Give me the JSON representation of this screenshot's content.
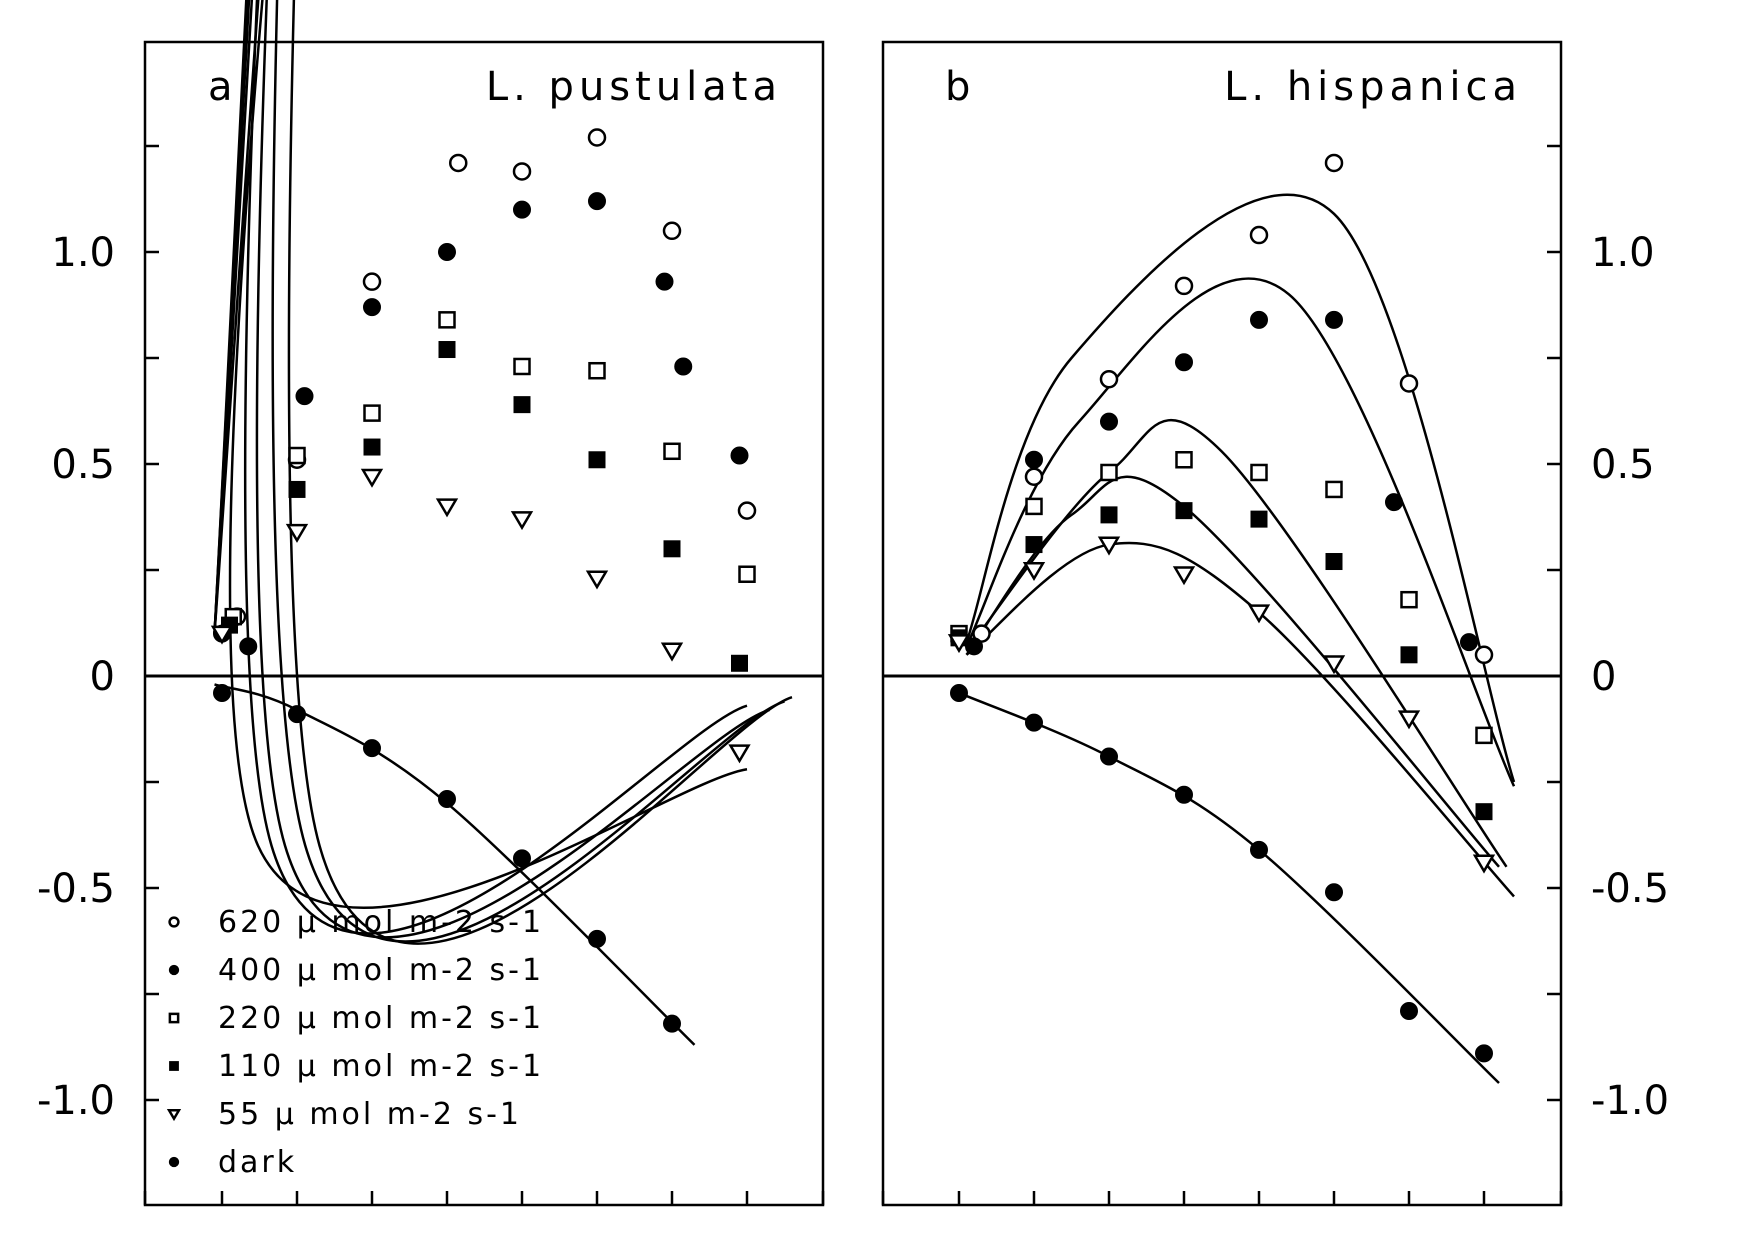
{
  "chart_data": [
    {
      "type": "scatter",
      "panel_label": "a",
      "title": "L. pustulata",
      "ylim": [
        -1.2,
        1.45
      ],
      "xlim": [
        -1.0,
        8.0
      ],
      "yticks": [
        -1.0,
        -0.75,
        -0.5,
        -0.25,
        0,
        0.25,
        0.5,
        0.75,
        1.0,
        1.25
      ],
      "ytick_labels": [
        "-1.0",
        "",
        "-0.5",
        "",
        "0",
        "",
        "0.5",
        "",
        "1.0",
        ""
      ],
      "axis_side": "left",
      "xticks": [
        0,
        1,
        2,
        3,
        4,
        5,
        6,
        7
      ],
      "grid": false,
      "legend_position": "bottom-left",
      "series": [
        {
          "name": "620 μ mol m-2 s-1",
          "marker": "open-circle",
          "x": [
            0.2,
            1.0,
            2.0,
            3.15,
            4.0,
            5.0,
            6.0,
            7.0
          ],
          "y": [
            0.14,
            0.51,
            0.93,
            1.21,
            1.19,
            1.27,
            1.05,
            0.39
          ],
          "curve": [
            -0.1,
            0.1,
            1.34,
            3.9,
            1.3,
            -0.4,
            7.6,
            -0.05
          ]
        },
        {
          "name": "400 μ mol m-2 s-1",
          "marker": "filled-circle",
          "x": [
            0.0,
            0.35,
            1.1,
            2.0,
            3.0,
            4.0,
            5.0,
            5.9,
            6.15,
            6.9
          ],
          "y": [
            0.1,
            0.07,
            0.66,
            0.87,
            1.0,
            1.1,
            1.12,
            0.93,
            0.73,
            0.52
          ],
          "curve": [
            -0.1,
            0.1,
            1.1,
            3.8,
            1.11,
            -0.4,
            7.5,
            -0.06
          ]
        },
        {
          "name": "220 μ mol m-2 s-1",
          "marker": "open-square",
          "x": [
            0.15,
            1.0,
            2.0,
            3.0,
            4.0,
            5.0,
            6.0,
            7.0
          ],
          "y": [
            0.14,
            0.52,
            0.62,
            0.84,
            0.73,
            0.72,
            0.53,
            0.24
          ],
          "curve": [
            -0.1,
            0.1,
            1.1,
            3.6,
            0.84,
            -0.4,
            7.3,
            -0.08
          ]
        },
        {
          "name": "110 μ mol m-2 s-1",
          "marker": "filled-square",
          "x": [
            0.1,
            1.0,
            2.0,
            3.0,
            4.0,
            5.0,
            6.0,
            6.9
          ],
          "y": [
            0.12,
            0.44,
            0.54,
            0.77,
            0.64,
            0.51,
            0.3,
            0.03
          ],
          "curve": [
            -0.1,
            0.1,
            1.0,
            3.5,
            0.66,
            -0.4,
            7.0,
            -0.07
          ]
        },
        {
          "name": "55 μ mol m-2 s-1",
          "marker": "open-triangle",
          "x": [
            0.0,
            1.0,
            2.0,
            3.0,
            4.0,
            5.0,
            6.0,
            6.9
          ],
          "y": [
            0.1,
            0.34,
            0.47,
            0.4,
            0.37,
            0.23,
            0.06,
            -0.18
          ],
          "curve": [
            -0.1,
            0.1,
            0.8,
            2.2,
            0.48,
            -0.4,
            7.0,
            -0.22
          ]
        },
        {
          "name": "dark",
          "marker": "filled-circle",
          "x": [
            0.0,
            1.0,
            2.0,
            3.0,
            4.0,
            5.0,
            6.0
          ],
          "y": [
            -0.04,
            -0.09,
            -0.17,
            -0.29,
            -0.43,
            -0.62,
            -0.82
          ],
          "curve": [
            -0.1,
            -0.02,
            1.0,
            -0.08,
            3.0,
            -0.3,
            6.3,
            -0.87
          ]
        }
      ]
    },
    {
      "type": "scatter",
      "panel_label": "b",
      "title": "L. hispanica",
      "ylim": [
        -1.2,
        1.45
      ],
      "xlim": [
        -1.0,
        8.0
      ],
      "yticks": [
        -1.0,
        -0.75,
        -0.5,
        -0.25,
        0,
        0.25,
        0.5,
        0.75,
        1.0,
        1.25
      ],
      "ytick_labels": [
        "-1.0",
        "",
        "-0.5",
        "",
        "0",
        "",
        "0.5",
        "",
        "1.0",
        ""
      ],
      "axis_side": "right",
      "xticks": [
        0,
        1,
        2,
        3,
        4,
        5,
        6,
        7
      ],
      "grid": false,
      "series": [
        {
          "name": "620 μ mol m-2 s-1",
          "marker": "open-circle",
          "x": [
            0.3,
            1.0,
            2.0,
            3.0,
            4.0,
            5.0,
            6.0,
            7.0
          ],
          "y": [
            0.1,
            0.47,
            0.7,
            0.92,
            1.04,
            1.21,
            0.69,
            0.05
          ],
          "curve": [
            0.1,
            0.08,
            1.5,
            0.75,
            5.0,
            1.09,
            7.4,
            -0.25
          ]
        },
        {
          "name": "400 μ mol m-2 s-1",
          "marker": "filled-circle",
          "x": [
            0.2,
            1.0,
            2.0,
            3.0,
            4.0,
            5.0,
            5.8,
            6.8
          ],
          "y": [
            0.07,
            0.51,
            0.6,
            0.74,
            0.84,
            0.84,
            0.41,
            0.08
          ],
          "curve": [
            0.1,
            0.07,
            1.6,
            0.6,
            4.4,
            0.9,
            7.4,
            -0.26
          ]
        },
        {
          "name": "220 μ mol m-2 s-1",
          "marker": "open-square",
          "x": [
            0.0,
            1.0,
            2.0,
            3.0,
            4.0,
            5.0,
            6.0,
            7.0
          ],
          "y": [
            0.1,
            0.4,
            0.48,
            0.51,
            0.48,
            0.44,
            0.18,
            -0.14
          ],
          "curve": [
            0.1,
            0.06,
            2.0,
            0.48,
            3.5,
            0.53,
            7.3,
            -0.45
          ]
        },
        {
          "name": "110 μ mol m-2 s-1",
          "marker": "filled-square",
          "x": [
            0.0,
            1.0,
            2.0,
            3.0,
            4.0,
            5.0,
            6.0,
            7.0
          ],
          "y": [
            0.09,
            0.31,
            0.38,
            0.39,
            0.37,
            0.27,
            0.05,
            -0.32
          ],
          "curve": [
            0.1,
            0.05,
            1.5,
            0.38,
            3.0,
            0.4,
            7.2,
            -0.45
          ]
        },
        {
          "name": "55 μ mol m-2 s-1",
          "marker": "open-triangle",
          "x": [
            0.0,
            1.0,
            2.0,
            3.0,
            4.0,
            5.0,
            6.0,
            7.0
          ],
          "y": [
            0.08,
            0.25,
            0.31,
            0.24,
            0.15,
            0.03,
            -0.1,
            -0.44
          ],
          "curve": [
            0.1,
            0.05,
            2.0,
            0.31,
            4.0,
            0.15,
            7.4,
            -0.52
          ]
        },
        {
          "name": "dark",
          "marker": "filled-circle",
          "x": [
            0.0,
            1.0,
            2.0,
            3.0,
            4.0,
            5.0,
            6.0,
            7.0
          ],
          "y": [
            -0.04,
            -0.11,
            -0.19,
            -0.28,
            -0.41,
            -0.51,
            -0.79,
            -0.89
          ],
          "curve": [
            0.0,
            -0.04,
            2.0,
            -0.19,
            4.0,
            -0.41,
            7.2,
            -0.96
          ]
        }
      ]
    }
  ],
  "legend": {
    "items": [
      {
        "marker": "open-circle",
        "label": "620 μ mol m-2 s-1"
      },
      {
        "marker": "filled-circle",
        "label": "400 μ mol m-2 s-1"
      },
      {
        "marker": "open-square",
        "label": "220 μ mol m-2 s-1"
      },
      {
        "marker": "filled-square",
        "label": "110 μ mol m-2 s-1"
      },
      {
        "marker": "open-triangle",
        "label": "55 μ mol m-2 s-1"
      },
      {
        "marker": "filled-circle",
        "label": "dark"
      }
    ]
  }
}
